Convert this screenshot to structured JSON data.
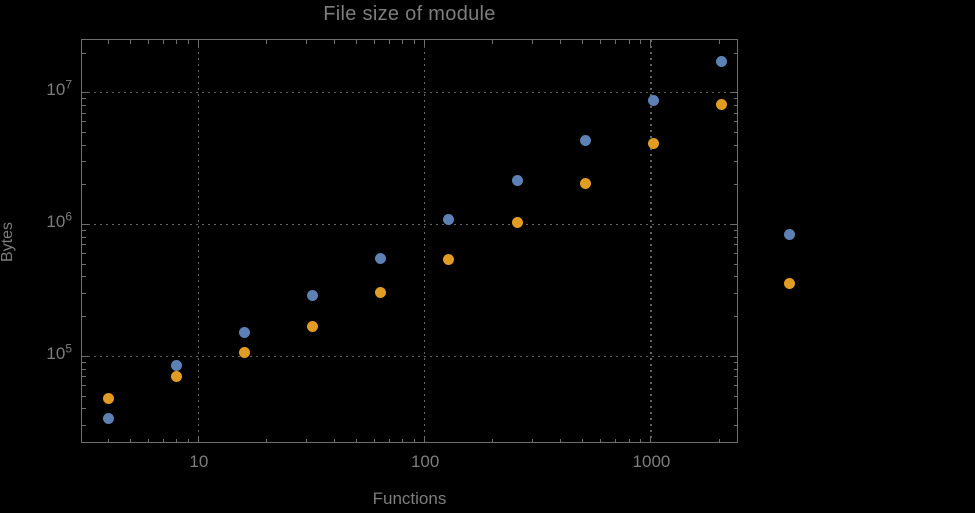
{
  "title": "File size of module",
  "axes": {
    "x_label": "Functions",
    "y_label": "Bytes",
    "x_tick_labels": [
      "10",
      "100",
      "1000"
    ],
    "x_tick_values": [
      10,
      100,
      1000
    ],
    "y_tick_base": "10",
    "y_tick_exponents": [
      5,
      6,
      7
    ]
  },
  "chart_data": {
    "type": "scatter",
    "title": "File size of module",
    "xlabel": "Functions",
    "ylabel": "Bytes",
    "x_scale": "log",
    "y_scale": "log",
    "xlim": [
      3.06,
      2400
    ],
    "ylim": [
      22400,
      25100000
    ],
    "grid": true,
    "legend": "none",
    "x": [
      4,
      8,
      16,
      32,
      64,
      128,
      256,
      512,
      1024,
      2048,
      4096
    ],
    "series": [
      {
        "name": "series-blue",
        "color": "#5E81B5",
        "values": [
          34000,
          85000,
          152000,
          289000,
          549000,
          1100000,
          2170000,
          4340000,
          8700000,
          17100000,
          834000
        ]
      },
      {
        "name": "series-orange",
        "color": "#E19C24",
        "values": [
          48200,
          70600,
          107000,
          168000,
          304000,
          540000,
          1040000,
          2060000,
          4120000,
          8120000,
          356000
        ]
      }
    ]
  },
  "style": {
    "background": "#000000",
    "text_color": "#7d7d7d",
    "frame_color": "#6e6e6e",
    "grid_color": "#646464"
  }
}
